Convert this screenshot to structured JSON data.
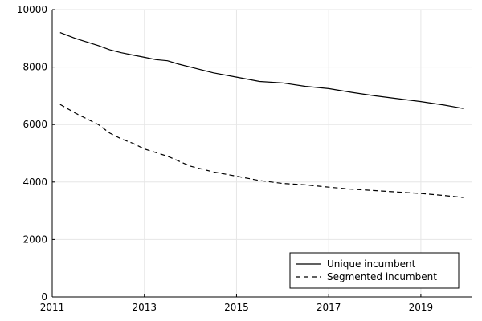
{
  "chart_data": {
    "type": "line",
    "xlim": [
      2011.0,
      2020.1
    ],
    "ylim": [
      0,
      10000
    ],
    "xticks": [
      2011,
      2013,
      2015,
      2017,
      2019
    ],
    "yticks": [
      0,
      2000,
      4000,
      6000,
      8000,
      10000
    ],
    "grid": true,
    "legend_position": "bottom-right",
    "series": [
      {
        "name": "Unique incumbent",
        "style": "solid",
        "color": "#000000",
        "x": [
          2011.17,
          2011.5,
          2012.0,
          2012.25,
          2012.5,
          2012.75,
          2013.0,
          2013.25,
          2013.5,
          2013.75,
          2014.0,
          2014.5,
          2015.0,
          2015.5,
          2016.0,
          2016.5,
          2017.0,
          2017.5,
          2018.0,
          2018.5,
          2019.0,
          2019.5,
          2019.92
        ],
        "y": [
          9200,
          9000,
          8750,
          8600,
          8500,
          8420,
          8340,
          8260,
          8220,
          8100,
          8000,
          7800,
          7650,
          7500,
          7450,
          7330,
          7250,
          7120,
          7000,
          6900,
          6800,
          6680,
          6560
        ]
      },
      {
        "name": "Segmented incumbent",
        "style": "dashed",
        "color": "#000000",
        "x": [
          2011.17,
          2011.5,
          2012.0,
          2012.25,
          2012.5,
          2012.75,
          2013.0,
          2013.5,
          2014.0,
          2014.5,
          2015.0,
          2015.5,
          2016.0,
          2016.5,
          2017.0,
          2017.5,
          2018.0,
          2018.5,
          2019.0,
          2019.5,
          2019.92
        ],
        "y": [
          6700,
          6400,
          6000,
          5700,
          5500,
          5350,
          5150,
          4900,
          4550,
          4350,
          4200,
          4050,
          3950,
          3900,
          3820,
          3750,
          3700,
          3650,
          3600,
          3530,
          3460
        ]
      }
    ]
  }
}
